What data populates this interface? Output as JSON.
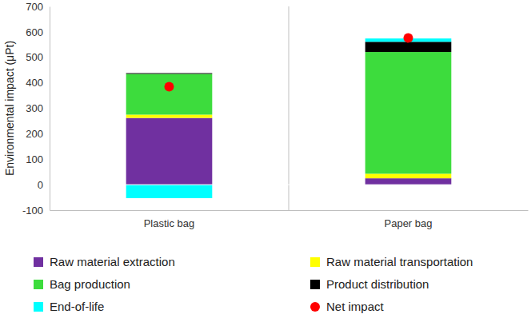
{
  "chart_data": {
    "type": "bar",
    "stacked": true,
    "y_label": "Environmental impact (μPt)",
    "categories": [
      "Plastic bag",
      "Paper bag"
    ],
    "series": [
      {
        "name": "Raw material extraction",
        "color": "#7030a0",
        "values": [
          262,
          25
        ]
      },
      {
        "name": "Raw material transportation",
        "color": "#ffff00",
        "values": [
          13,
          18
        ]
      },
      {
        "name": "Bag production",
        "color": "#3ddc3d",
        "values": [
          160,
          478
        ]
      },
      {
        "name": "Product distribution",
        "color": "#000000",
        "values": [
          3,
          40
        ]
      },
      {
        "name": "End-of-life",
        "color": "#00ffff",
        "values": [
          -53,
          13
        ]
      },
      {
        "name": "Net impact",
        "color": "#ff0000",
        "type": "scatter",
        "marker": "circle",
        "values": [
          385,
          576
        ]
      }
    ],
    "ylim": [
      -100,
      700
    ],
    "yticks": [
      -100,
      0,
      100,
      200,
      300,
      400,
      500,
      600,
      700
    ],
    "grid": false,
    "legend": "bottom"
  }
}
